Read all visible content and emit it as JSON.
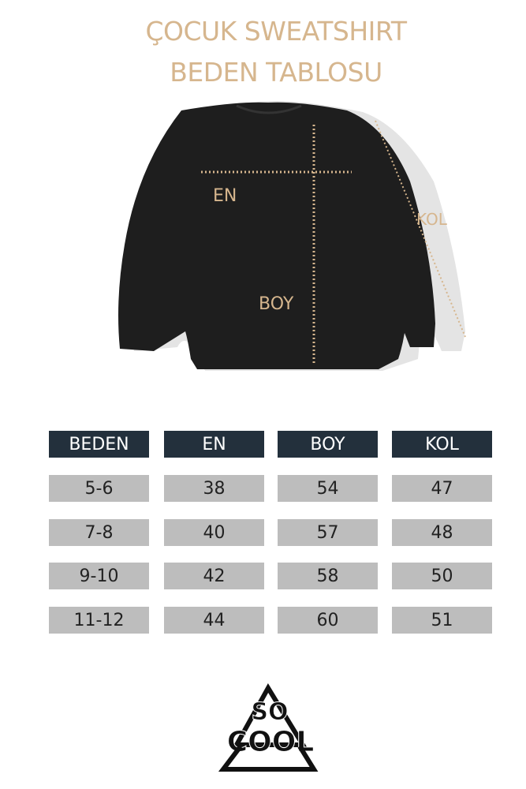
{
  "title": {
    "line1": "ÇOCUK SWEATSHIRT",
    "line2": "BEDEN TABLOSU"
  },
  "diagram_labels": {
    "width": "EN",
    "length": "BOY",
    "sleeve": "KOL"
  },
  "colors": {
    "accent": "#d6b68e",
    "header_bg": "#23303c",
    "cell_bg": "#bdbdbd",
    "garment": "#1e1e1e"
  },
  "table": {
    "headers": [
      "BEDEN",
      "EN",
      "BOY",
      "KOL"
    ],
    "rows": [
      [
        "5-6",
        "38",
        "54",
        "47"
      ],
      [
        "7-8",
        "40",
        "57",
        "48"
      ],
      [
        "9-10",
        "42",
        "58",
        "50"
      ],
      [
        "11-12",
        "44",
        "60",
        "51"
      ]
    ]
  },
  "logo": {
    "text": "SO COOL"
  }
}
